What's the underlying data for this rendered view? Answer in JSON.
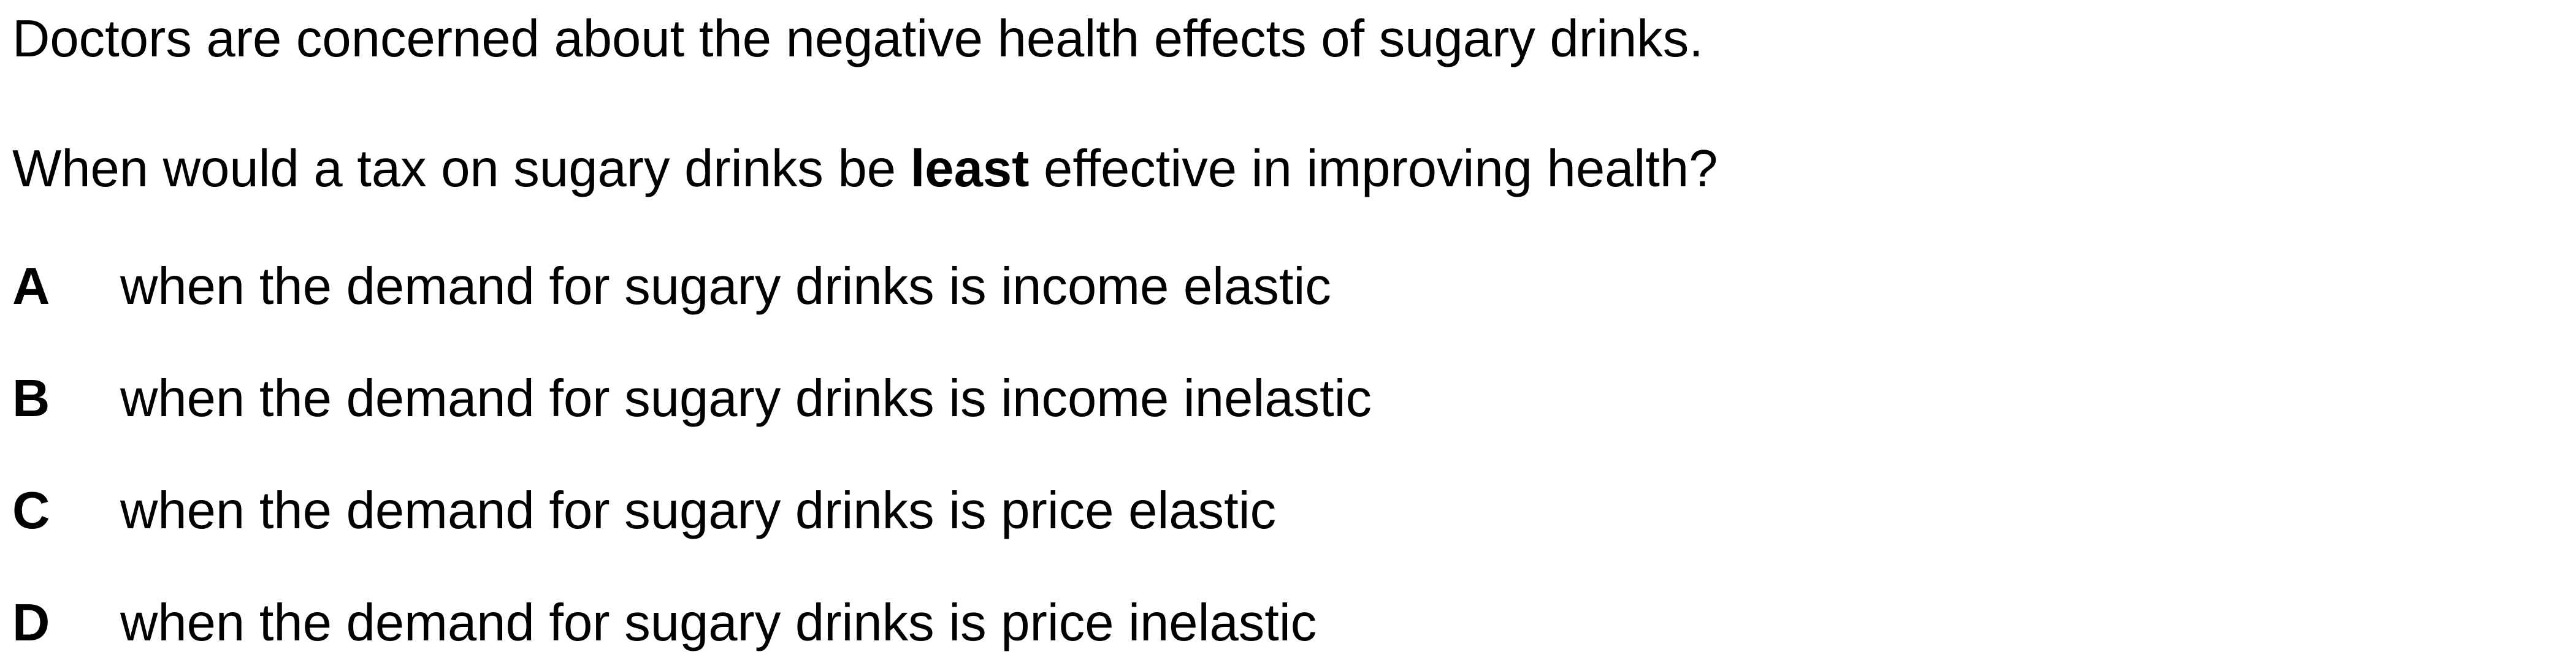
{
  "intro": "Doctors are concerned about the negative health effects of sugary drinks.",
  "question": {
    "before": "When would a tax on sugary drinks be ",
    "emphasis": "least",
    "after": " effective in improving health?"
  },
  "options": [
    {
      "letter": "A",
      "text": "when the demand for sugary drinks is income elastic"
    },
    {
      "letter": "B",
      "text": "when the demand for sugary drinks is income inelastic"
    },
    {
      "letter": "C",
      "text": "when the demand for sugary drinks is price elastic"
    },
    {
      "letter": "D",
      "text": "when the demand for sugary drinks is price inelastic"
    }
  ]
}
